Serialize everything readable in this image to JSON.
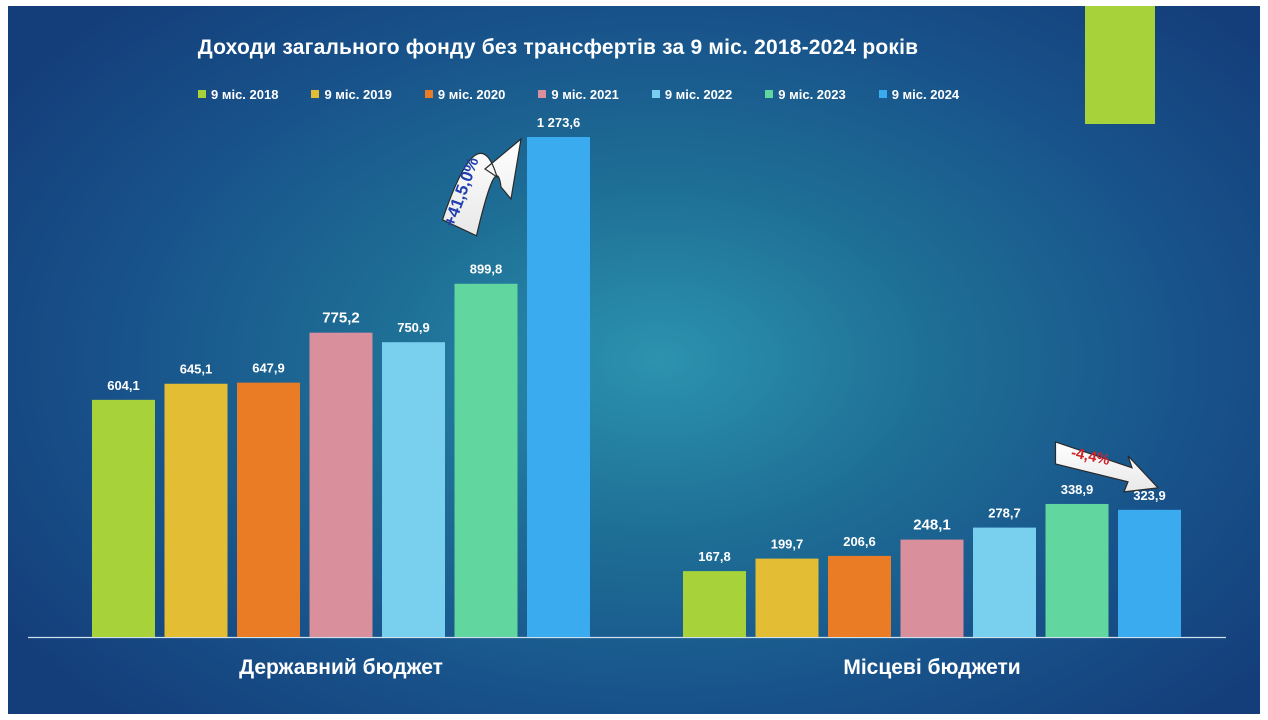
{
  "chart_data": {
    "type": "bar",
    "title": "Доходи загального фонду без трансфертів за 9 міс. 2018-2024 років",
    "categories": [
      "Державний бюджет",
      "Місцеві бюджети"
    ],
    "series": [
      {
        "name": "9 міс. 2018",
        "color": "#a8d23a",
        "values": [
          604.1,
          167.8
        ],
        "labels": [
          "604,1",
          "167,8"
        ]
      },
      {
        "name": "9 міс. 2019",
        "color": "#e3bd34",
        "values": [
          645.1,
          199.7
        ],
        "labels": [
          "645,1",
          "199,7"
        ]
      },
      {
        "name": "9 міс. 2020",
        "color": "#ea7c25",
        "values": [
          647.9,
          206.6
        ],
        "labels": [
          "647,9",
          "206,6"
        ]
      },
      {
        "name": "9 міс. 2021",
        "color": "#d98f9c",
        "values": [
          775.2,
          248.1
        ],
        "labels": [
          "775,2",
          "248,1"
        ]
      },
      {
        "name": "9 міс. 2022",
        "color": "#78cfee",
        "values": [
          750.9,
          278.7
        ],
        "labels": [
          "750,9",
          "278,7"
        ]
      },
      {
        "name": "9 міс. 2023",
        "color": "#62d69f",
        "values": [
          899.8,
          338.9
        ],
        "labels": [
          "899,8",
          "338,9"
        ]
      },
      {
        "name": "9 міс. 2024",
        "color": "#3aabee",
        "values": [
          1273.6,
          323.9
        ],
        "labels": [
          "1 273,6",
          "323,9"
        ]
      }
    ],
    "ylim": [
      0,
      1273.6
    ],
    "grid": false,
    "legend_position": "top",
    "annotations": [
      {
        "group": 0,
        "text": "+41,5,0%",
        "color": "#1f3fae",
        "direction": "up"
      },
      {
        "group": 1,
        "text": "-4,4%",
        "color": "#d0242a",
        "direction": "down"
      }
    ]
  }
}
